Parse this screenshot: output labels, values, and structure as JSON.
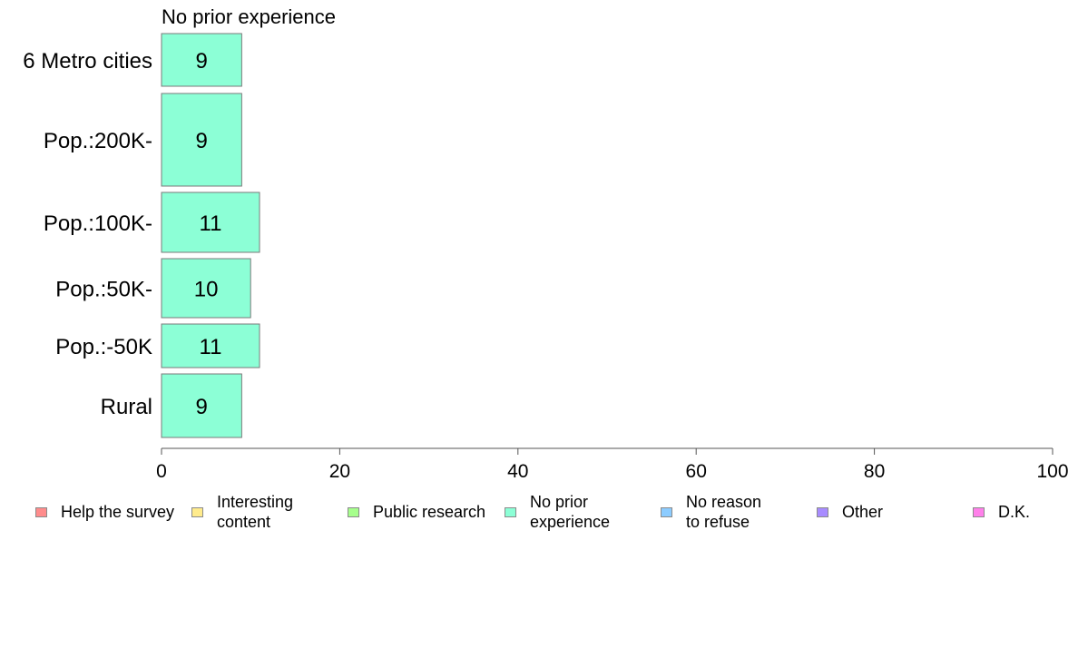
{
  "chart_data": {
    "type": "bar",
    "orientation": "horizontal",
    "title": "No prior experience",
    "categories": [
      "6 Metro cities",
      "Pop.:200K-",
      "Pop.:100K-",
      "Pop.:50K-",
      "Pop.:-50K",
      "Rural"
    ],
    "values": [
      9,
      9,
      11,
      10,
      11,
      9
    ],
    "series": [
      {
        "name": "No prior experience",
        "values": [
          9,
          9,
          11,
          10,
          11,
          9
        ]
      }
    ],
    "xlim": [
      0,
      100
    ],
    "x_ticks": [
      "0",
      "20",
      "40",
      "60",
      "80",
      "100"
    ],
    "xlabel": "",
    "ylabel": "",
    "grid": false,
    "legend_position": "bottom",
    "bar_color": "#8cffd6"
  },
  "legend": [
    {
      "label": "Help the survey",
      "color": "#ff8c8c"
    },
    {
      "label": "Interesting\ncontent",
      "color": "#ffeb8c"
    },
    {
      "label": "Public research",
      "color": "#a6ff8c"
    },
    {
      "label": "No prior\nexperience",
      "color": "#8cffd6"
    },
    {
      "label": "No reason\nto refuse",
      "color": "#8cccff"
    },
    {
      "label": "Other",
      "color": "#a88cff"
    },
    {
      "label": "D.K.",
      "color": "#ff80ea"
    }
  ]
}
